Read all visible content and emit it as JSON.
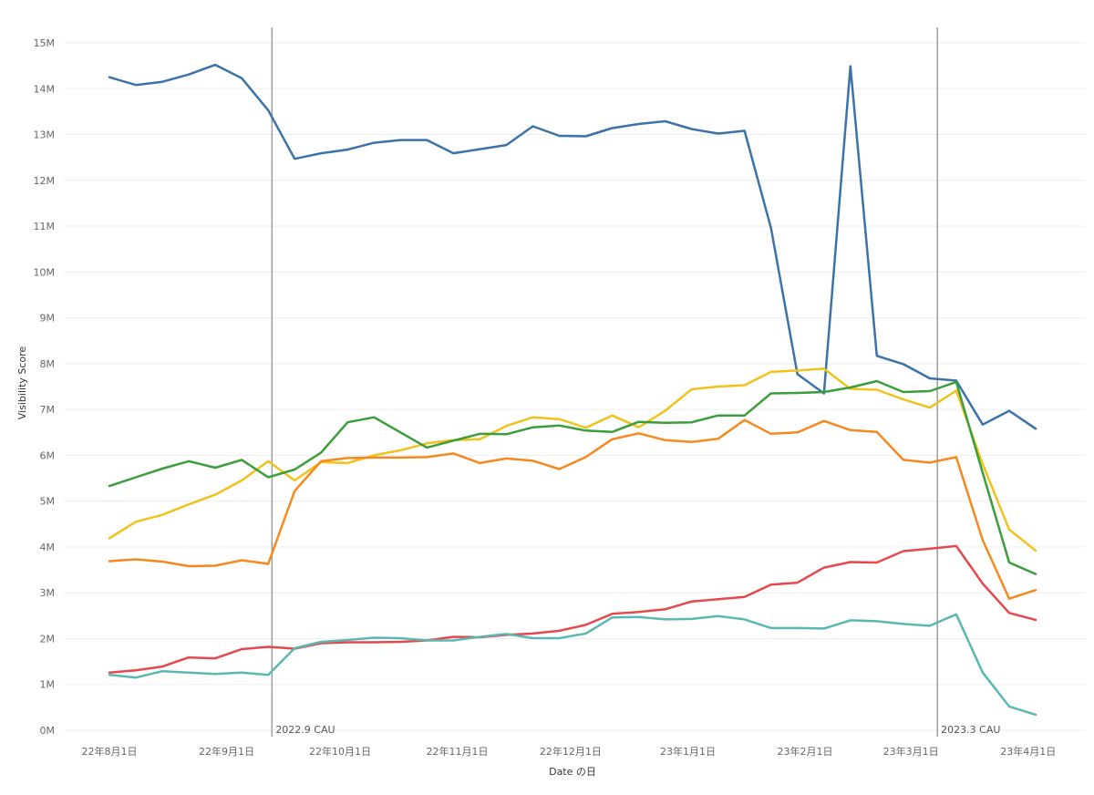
{
  "chart_data": {
    "type": "line",
    "xlabel": "Date の日",
    "ylabel": "Visibility Score",
    "ylim": [
      0,
      15000000
    ],
    "xlim": [
      "2022-07-20",
      "2023-04-10"
    ],
    "grid": true,
    "y_ticks": [
      {
        "value": 0,
        "label": "0M"
      },
      {
        "value": 1000000,
        "label": "1M"
      },
      {
        "value": 2000000,
        "label": "2M"
      },
      {
        "value": 3000000,
        "label": "3M"
      },
      {
        "value": 4000000,
        "label": "4M"
      },
      {
        "value": 5000000,
        "label": "5M"
      },
      {
        "value": 6000000,
        "label": "6M"
      },
      {
        "value": 7000000,
        "label": "7M"
      },
      {
        "value": 8000000,
        "label": "8M"
      },
      {
        "value": 9000000,
        "label": "9M"
      },
      {
        "value": 10000000,
        "label": "10M"
      },
      {
        "value": 11000000,
        "label": "11M"
      },
      {
        "value": 12000000,
        "label": "12M"
      },
      {
        "value": 13000000,
        "label": "13M"
      },
      {
        "value": 14000000,
        "label": "14M"
      },
      {
        "value": 15000000,
        "label": "15M"
      }
    ],
    "x_ticks": [
      {
        "date": "2022-08-01",
        "label": "22年8月1日"
      },
      {
        "date": "2022-09-01",
        "label": "22年9月1日"
      },
      {
        "date": "2022-10-01",
        "label": "22年10月1日"
      },
      {
        "date": "2022-11-01",
        "label": "22年11月1日"
      },
      {
        "date": "2022-12-01",
        "label": "22年12月1日"
      },
      {
        "date": "2023-01-01",
        "label": "23年1月1日"
      },
      {
        "date": "2023-02-01",
        "label": "23年2月1日"
      },
      {
        "date": "2023-03-01",
        "label": "23年3月1日"
      },
      {
        "date": "2023-04-01",
        "label": "23年4月1日"
      }
    ],
    "reference_lines": [
      {
        "date": "2022-09-13",
        "label": "2022.9 CAU"
      },
      {
        "date": "2023-03-08",
        "label": "2023.3 CAU"
      }
    ],
    "x": [
      "2022-08-01",
      "2022-08-08",
      "2022-08-15",
      "2022-08-22",
      "2022-08-29",
      "2022-09-05",
      "2022-09-12",
      "2022-09-19",
      "2022-09-26",
      "2022-10-03",
      "2022-10-10",
      "2022-10-17",
      "2022-10-24",
      "2022-10-31",
      "2022-11-07",
      "2022-11-14",
      "2022-11-21",
      "2022-11-28",
      "2022-12-05",
      "2022-12-12",
      "2022-12-19",
      "2022-12-26",
      "2023-01-02",
      "2023-01-09",
      "2023-01-16",
      "2023-01-23",
      "2023-01-30",
      "2023-02-06",
      "2023-02-13",
      "2023-02-20",
      "2023-02-27",
      "2023-03-06",
      "2023-03-13",
      "2023-03-20",
      "2023-03-27",
      "2023-04-03"
    ],
    "series": [
      {
        "color": "#3b73a8",
        "values": [
          14250000,
          14080000,
          14150000,
          14310000,
          14520000,
          14230000,
          13530000,
          12470000,
          12590000,
          12670000,
          12820000,
          12880000,
          12880000,
          12590000,
          12680000,
          12770000,
          13180000,
          12970000,
          12960000,
          13140000,
          13230000,
          13290000,
          13120000,
          13020000,
          13080000,
          10960000,
          7770000,
          7350000,
          14490000,
          8170000,
          7990000,
          7680000,
          7630000,
          6670000,
          6970000,
          6580000
        ]
      },
      {
        "color": "#f1c21b",
        "values": [
          4190000,
          4550000,
          4700000,
          4930000,
          5140000,
          5450000,
          5870000,
          5450000,
          5850000,
          5830000,
          6000000,
          6110000,
          6260000,
          6330000,
          6350000,
          6640000,
          6830000,
          6790000,
          6600000,
          6870000,
          6610000,
          6970000,
          7440000,
          7500000,
          7530000,
          7820000,
          7850000,
          7890000,
          7450000,
          7430000,
          7220000,
          7040000,
          7410000,
          5810000,
          4380000,
          3920000
        ]
      },
      {
        "color": "#3a9e3a",
        "values": [
          5330000,
          5520000,
          5710000,
          5870000,
          5730000,
          5900000,
          5520000,
          5690000,
          6060000,
          6720000,
          6830000,
          6500000,
          6170000,
          6320000,
          6470000,
          6460000,
          6610000,
          6650000,
          6540000,
          6510000,
          6730000,
          6710000,
          6720000,
          6870000,
          6870000,
          7350000,
          7360000,
          7380000,
          7480000,
          7620000,
          7380000,
          7400000,
          7600000,
          5620000,
          3660000,
          3410000
        ]
      },
      {
        "color": "#f5891e",
        "values": [
          3690000,
          3730000,
          3680000,
          3580000,
          3590000,
          3710000,
          3630000,
          5220000,
          5870000,
          5940000,
          5950000,
          5950000,
          5960000,
          6040000,
          5830000,
          5930000,
          5880000,
          5700000,
          5960000,
          6350000,
          6480000,
          6330000,
          6290000,
          6360000,
          6770000,
          6470000,
          6500000,
          6750000,
          6550000,
          6510000,
          5900000,
          5840000,
          5960000,
          4150000,
          2870000,
          3060000
        ]
      },
      {
        "color": "#e5484d",
        "values": [
          1260000,
          1310000,
          1390000,
          1590000,
          1570000,
          1770000,
          1820000,
          1780000,
          1900000,
          1920000,
          1920000,
          1930000,
          1960000,
          2040000,
          2030000,
          2080000,
          2110000,
          2170000,
          2300000,
          2540000,
          2580000,
          2640000,
          2810000,
          2860000,
          2910000,
          3180000,
          3220000,
          3550000,
          3670000,
          3660000,
          3910000,
          3960000,
          4020000,
          3200000,
          2560000,
          2410000
        ]
      },
      {
        "color": "#5ab8b3",
        "values": [
          1210000,
          1150000,
          1290000,
          1260000,
          1230000,
          1260000,
          1210000,
          1790000,
          1930000,
          1970000,
          2020000,
          2010000,
          1960000,
          1960000,
          2040000,
          2100000,
          2010000,
          2010000,
          2110000,
          2460000,
          2470000,
          2420000,
          2430000,
          2490000,
          2420000,
          2230000,
          2230000,
          2220000,
          2400000,
          2380000,
          2320000,
          2280000,
          2530000,
          1260000,
          520000,
          340000
        ]
      }
    ]
  }
}
